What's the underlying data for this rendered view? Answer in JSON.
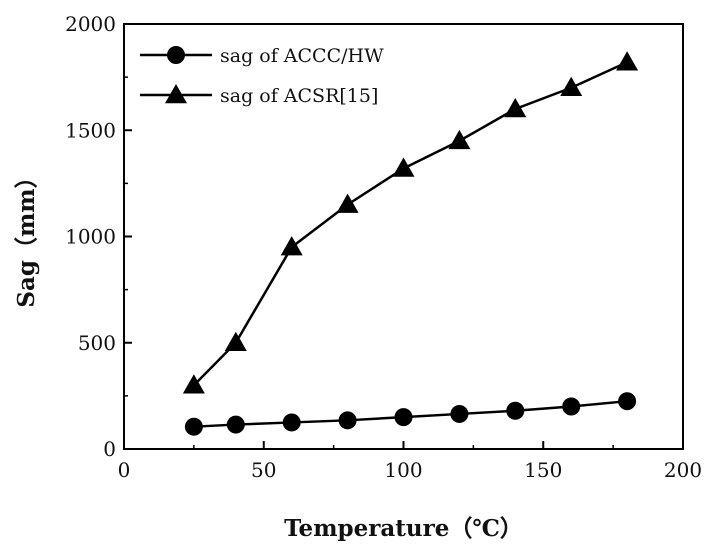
{
  "chart_data": {
    "type": "line",
    "title": "",
    "xlabel": "Temperature（℃）",
    "ylabel": "Sag（mm）",
    "xlim": [
      0,
      200
    ],
    "ylim": [
      0,
      2000
    ],
    "xticks": [
      0,
      50,
      100,
      150,
      200
    ],
    "yticks": [
      0,
      500,
      1000,
      1500,
      2000
    ],
    "xtick_labels": [
      "0",
      "50",
      "100",
      "150",
      "200"
    ],
    "ytick_labels": [
      "0",
      "500",
      "1000",
      "1500",
      "2000"
    ],
    "grid": false,
    "legend_position": "top-left",
    "series": [
      {
        "name": "sag of  ACCC/HW",
        "marker": "circle",
        "color": "#000000",
        "x": [
          25,
          40,
          60,
          80,
          100,
          120,
          140,
          160,
          180
        ],
        "y": [
          105,
          115,
          125,
          135,
          150,
          165,
          180,
          200,
          225
        ]
      },
      {
        "name": "sag of ACSR[15]",
        "marker": "triangle",
        "color": "#000000",
        "x": [
          25,
          40,
          60,
          80,
          100,
          120,
          140,
          160,
          180
        ],
        "y": [
          300,
          500,
          950,
          1150,
          1320,
          1450,
          1600,
          1700,
          1820
        ]
      }
    ]
  }
}
